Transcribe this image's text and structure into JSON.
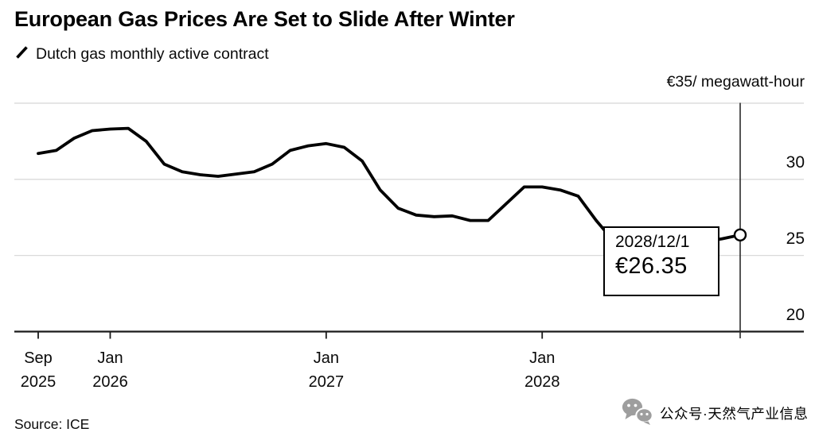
{
  "header": {
    "title": "European Gas Prices Are Set to Slide After Winter",
    "legend_label": "Dutch gas monthly active contract",
    "unit_label": "€35/ megawatt-hour"
  },
  "tooltip": {
    "date": "2028/12/1",
    "value": "€26.35"
  },
  "axes": {
    "y_ticks": [
      "30",
      "25",
      "20"
    ],
    "y_tick_values": [
      30,
      25,
      20
    ],
    "x_ticks": [
      {
        "month": "Sep",
        "year": "2025",
        "index": 0
      },
      {
        "month": "Jan",
        "year": "2026",
        "index": 4
      },
      {
        "month": "Jan",
        "year": "2027",
        "index": 16
      },
      {
        "month": "Jan",
        "year": "2028",
        "index": 28
      }
    ]
  },
  "footer": {
    "source": "Source: ICE",
    "watermark": "公众号·天然气产业信息"
  },
  "colors": {
    "line": "#000000",
    "grid": "#d9d9d9",
    "axis": "#1a1a1a",
    "marker_line": "#2a2a2a",
    "watermark": "#9e9e9e"
  },
  "chart_data": {
    "type": "line",
    "title": "European Gas Prices Are Set to Slide After Winter",
    "unit": "EUR/megawatt-hour",
    "source": "ICE",
    "grid": true,
    "legend_position": "top-left",
    "ylim": [
      20,
      35
    ],
    "y_gridlines": [
      35,
      30,
      25
    ],
    "x_tick_labels": [
      "Sep 2025",
      "Jan 2026",
      "Jan 2027",
      "Jan 2028"
    ],
    "x": [
      "2025-09",
      "2025-10",
      "2025-11",
      "2025-12",
      "2026-01",
      "2026-02",
      "2026-03",
      "2026-04",
      "2026-05",
      "2026-06",
      "2026-07",
      "2026-08",
      "2026-09",
      "2026-10",
      "2026-11",
      "2026-12",
      "2027-01",
      "2027-02",
      "2027-03",
      "2027-04",
      "2027-05",
      "2027-06",
      "2027-07",
      "2027-08",
      "2027-09",
      "2027-10",
      "2027-11",
      "2027-12",
      "2028-01",
      "2028-02",
      "2028-03",
      "2028-04",
      "2028-05",
      "2028-06",
      "2028-07",
      "2028-08",
      "2028-09",
      "2028-10",
      "2028-11",
      "2028-12"
    ],
    "series": [
      {
        "name": "Dutch gas monthly active contract",
        "values": [
          31.7,
          31.9,
          32.7,
          33.2,
          33.3,
          33.35,
          32.5,
          31.0,
          30.5,
          30.3,
          30.2,
          30.35,
          30.5,
          31.0,
          31.9,
          32.2,
          32.35,
          32.1,
          31.2,
          29.3,
          28.1,
          27.65,
          27.55,
          27.6,
          27.3,
          27.3,
          28.4,
          29.5,
          29.5,
          29.3,
          28.9,
          27.3,
          25.9,
          25.65,
          25.6,
          25.65,
          25.75,
          25.9,
          26.1,
          26.35
        ]
      }
    ],
    "highlight_point": {
      "date": "2028/12/1",
      "value": 26.35
    }
  }
}
